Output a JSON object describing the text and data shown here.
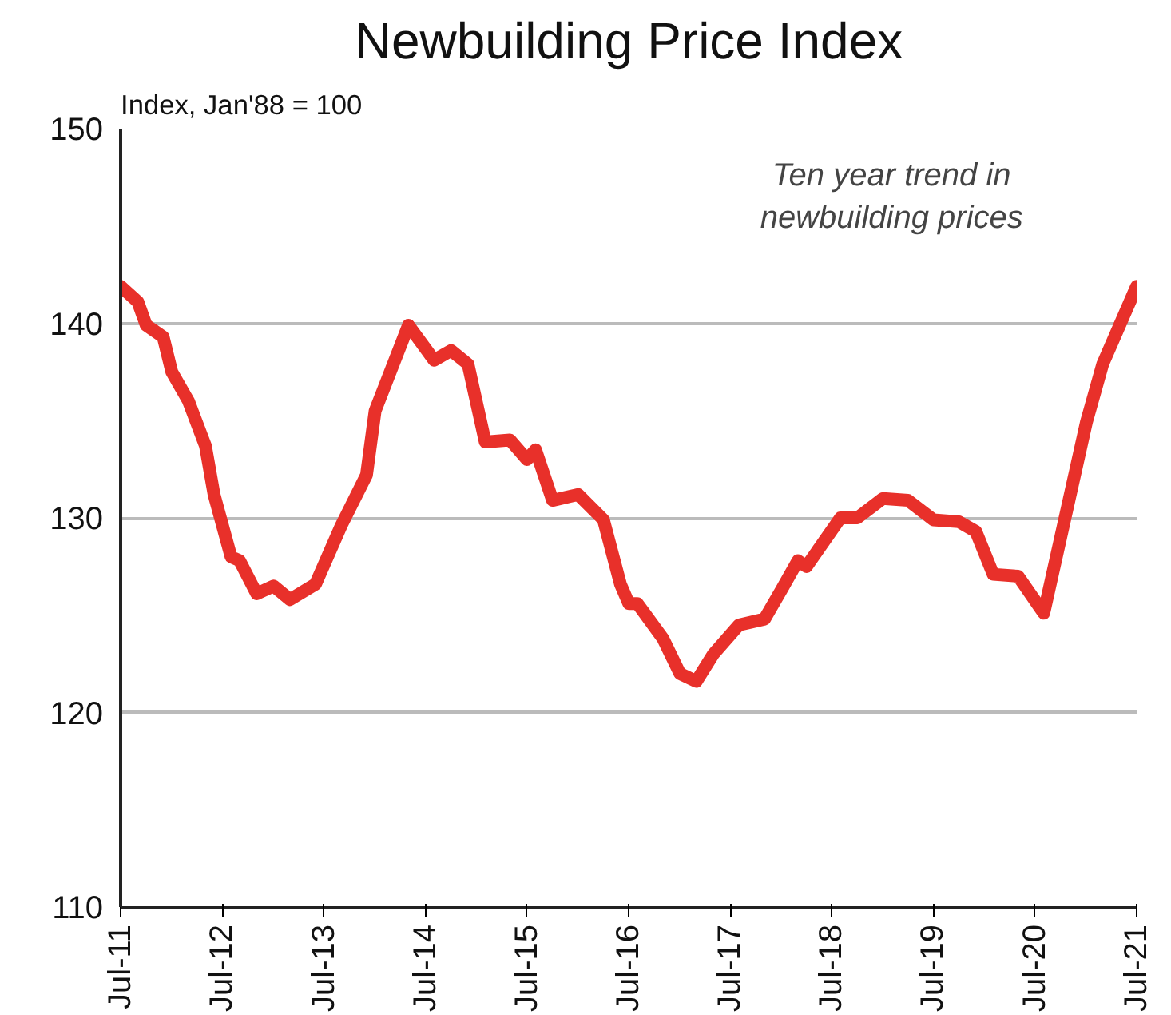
{
  "chart_data": {
    "type": "line",
    "title": "Newbuilding Price Index",
    "ylabel": "Index, Jan'88 = 100",
    "annotations": [
      "Ten year trend in\nnewbuilding prices"
    ],
    "x": [
      "2011-07",
      "2011-09",
      "2011-10",
      "2011-12",
      "2012-01",
      "2012-03",
      "2012-05",
      "2012-06",
      "2012-08",
      "2012-09",
      "2012-11",
      "2013-01",
      "2013-03",
      "2013-06",
      "2013-09",
      "2013-12",
      "2014-01",
      "2014-05",
      "2014-08",
      "2014-10",
      "2014-12",
      "2015-02",
      "2015-05",
      "2015-07",
      "2015-08",
      "2015-10",
      "2016-01",
      "2016-04",
      "2016-06",
      "2016-07",
      "2016-08",
      "2016-11",
      "2017-01",
      "2017-03",
      "2017-05",
      "2017-08",
      "2017-11",
      "2018-01",
      "2018-03",
      "2018-04",
      "2018-08",
      "2018-10",
      "2019-01",
      "2019-04",
      "2019-07",
      "2019-10",
      "2019-12",
      "2020-02",
      "2020-05",
      "2020-08",
      "2020-10",
      "2021-01",
      "2021-03",
      "2021-07"
    ],
    "series": [
      {
        "color": "#e8302a",
        "values": [
          141.9,
          141.1,
          139.9,
          139.3,
          137.5,
          136.0,
          133.7,
          131.2,
          128.0,
          127.8,
          126.1,
          126.5,
          125.8,
          126.6,
          129.6,
          132.2,
          135.5,
          139.9,
          138.1,
          138.6,
          137.9,
          133.9,
          134.0,
          133.0,
          133.5,
          130.9,
          131.2,
          129.9,
          126.6,
          125.6,
          125.6,
          123.8,
          122.0,
          121.6,
          123.0,
          124.5,
          124.8,
          126.3,
          127.8,
          127.5,
          130.0,
          130.0,
          131.0,
          130.9,
          129.9,
          129.8,
          129.3,
          127.1,
          127.0,
          125.1,
          129.0,
          134.9,
          137.9,
          141.9
        ]
      }
    ],
    "xlim": [
      "2011-07",
      "2021-07"
    ],
    "xticks": [
      {
        "value": "2011-07",
        "label": "Jul-11"
      },
      {
        "value": "2012-07",
        "label": "Jul-12"
      },
      {
        "value": "2013-07",
        "label": "Jul-13"
      },
      {
        "value": "2014-07",
        "label": "Jul-14"
      },
      {
        "value": "2015-07",
        "label": "Jul-15"
      },
      {
        "value": "2016-07",
        "label": "Jul-16"
      },
      {
        "value": "2017-07",
        "label": "Jul-17"
      },
      {
        "value": "2018-07",
        "label": "Jul-18"
      },
      {
        "value": "2019-07",
        "label": "Jul-19"
      },
      {
        "value": "2020-07",
        "label": "Jul-20"
      },
      {
        "value": "2021-07",
        "label": "Jul-21"
      }
    ],
    "ylim": [
      110,
      150
    ],
    "yticks": [
      110,
      120,
      130,
      140,
      150
    ],
    "grid": "y",
    "marker": "none",
    "line_style": "solid"
  }
}
